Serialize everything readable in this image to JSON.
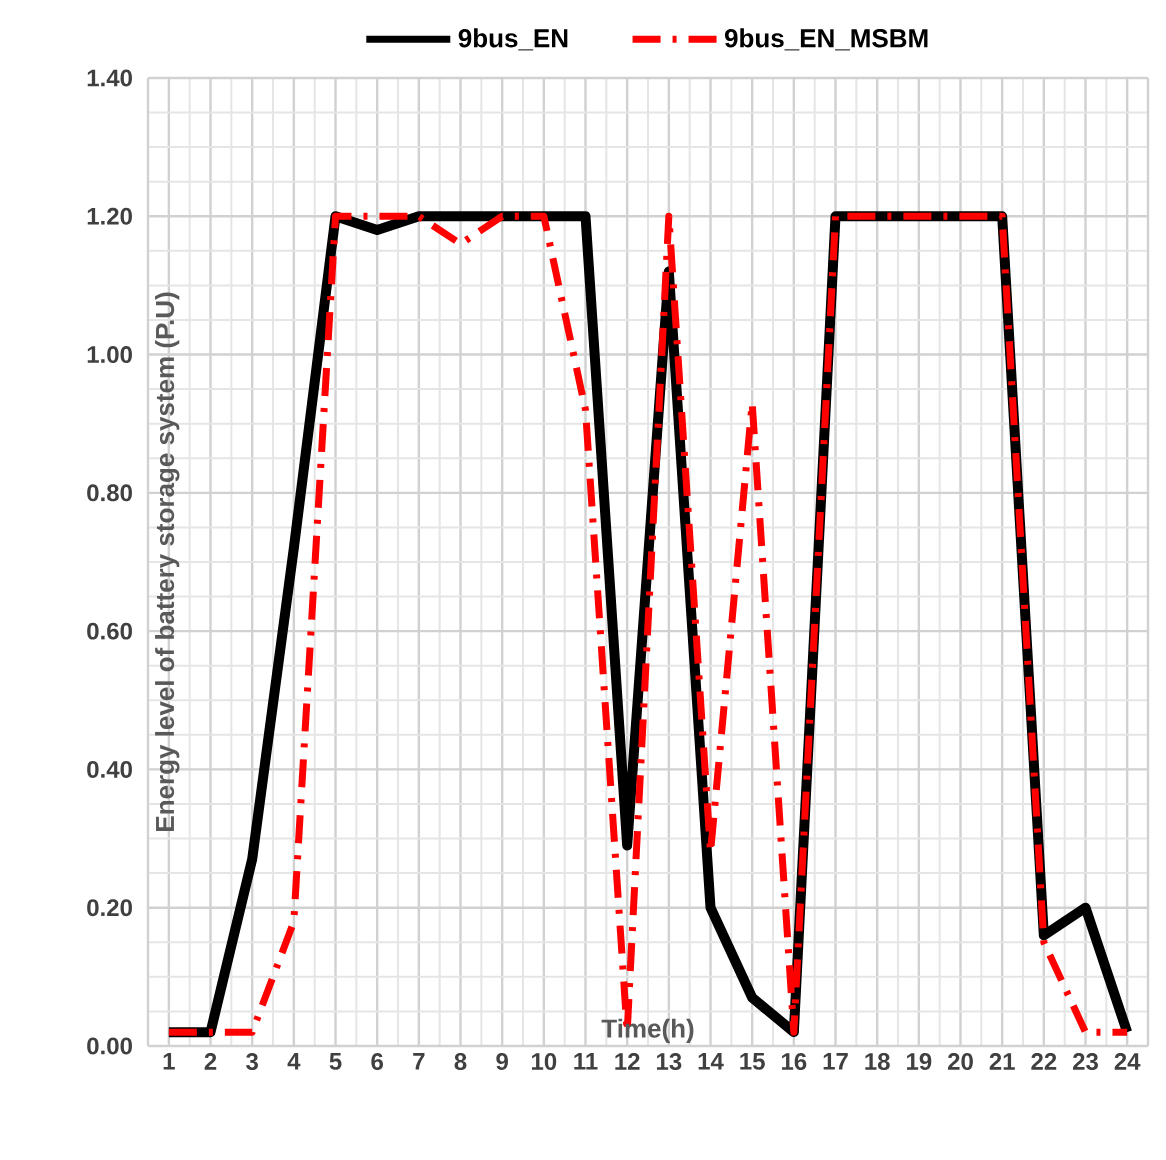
{
  "chart_data": {
    "type": "line",
    "xlabel": "Time(h)",
    "ylabel": "Energy level of battery storage system (P.U)",
    "categories": [
      "1",
      "2",
      "3",
      "4",
      "5",
      "6",
      "7",
      "8",
      "9",
      "10",
      "11",
      "12",
      "13",
      "14",
      "15",
      "16",
      "17",
      "18",
      "19",
      "20",
      "21",
      "22",
      "23",
      "24"
    ],
    "series": [
      {
        "name": "9bus_EN",
        "color": "#000000",
        "line_style": "solid",
        "values": [
          0.02,
          0.02,
          0.27,
          0.72,
          1.2,
          1.18,
          1.2,
          1.2,
          1.2,
          1.2,
          1.2,
          0.29,
          1.12,
          0.2,
          0.07,
          0.02,
          1.2,
          1.2,
          1.2,
          1.2,
          1.2,
          0.16,
          0.2,
          0.02
        ]
      },
      {
        "name": "9bus_EN_MSBM",
        "color": "#ff0000",
        "line_style": "dashdot",
        "values": [
          0.02,
          0.02,
          0.02,
          0.18,
          1.2,
          1.2,
          1.2,
          1.16,
          1.2,
          1.2,
          0.92,
          0.02,
          1.2,
          0.28,
          0.93,
          0.02,
          1.2,
          1.2,
          1.2,
          1.2,
          1.2,
          0.15,
          0.02,
          0.02
        ]
      }
    ],
    "ylim": [
      0,
      1.4
    ],
    "yticks": [
      {
        "value": 0,
        "label": "0.00"
      },
      {
        "value": 0.2,
        "label": "0.20"
      },
      {
        "value": 0.4,
        "label": "0.40"
      },
      {
        "value": 0.6,
        "label": "0.60"
      },
      {
        "value": 0.8,
        "label": "0.80"
      },
      {
        "value": 1.0,
        "label": "1.00"
      },
      {
        "value": 1.2,
        "label": "1.20"
      },
      {
        "value": 1.4,
        "label": "1.40"
      }
    ],
    "grid": true,
    "legend": "top",
    "marker": "none"
  }
}
